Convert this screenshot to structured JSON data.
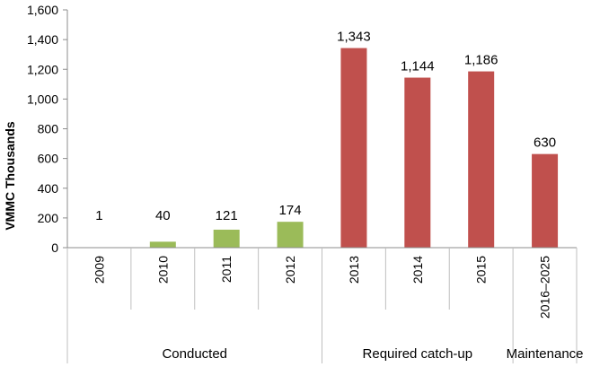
{
  "chart_data": {
    "type": "bar",
    "ylabel": "VMMC Thousands",
    "ylim": [
      0,
      1600
    ],
    "yticks": [
      0,
      200,
      400,
      600,
      800,
      1000,
      1200,
      1400,
      1600
    ],
    "ytick_labels": [
      "0",
      "200",
      "400",
      "600",
      "800",
      "1,000",
      "1,200",
      "1,400",
      "1,600"
    ],
    "categories": [
      "2009",
      "2010",
      "2011",
      "2012",
      "2013",
      "2014",
      "2015",
      "2016–2025"
    ],
    "values": [
      1,
      40,
      121,
      174,
      1343,
      1144,
      1186,
      630
    ],
    "value_labels": [
      "1",
      "40",
      "121",
      "174",
      "1,343",
      "1,144",
      "1,186",
      "630"
    ],
    "groups": [
      {
        "label": "Conducted",
        "categories": [
          "2009",
          "2010",
          "2011",
          "2012"
        ],
        "color": "#9bbb59"
      },
      {
        "label": "Required catch-up",
        "categories": [
          "2013",
          "2014",
          "2015"
        ],
        "color": "#c0504d"
      },
      {
        "label": "Maintenance",
        "categories": [
          "2016–2025"
        ],
        "color": "#c0504d"
      }
    ],
    "grid": false,
    "legend": "none"
  }
}
